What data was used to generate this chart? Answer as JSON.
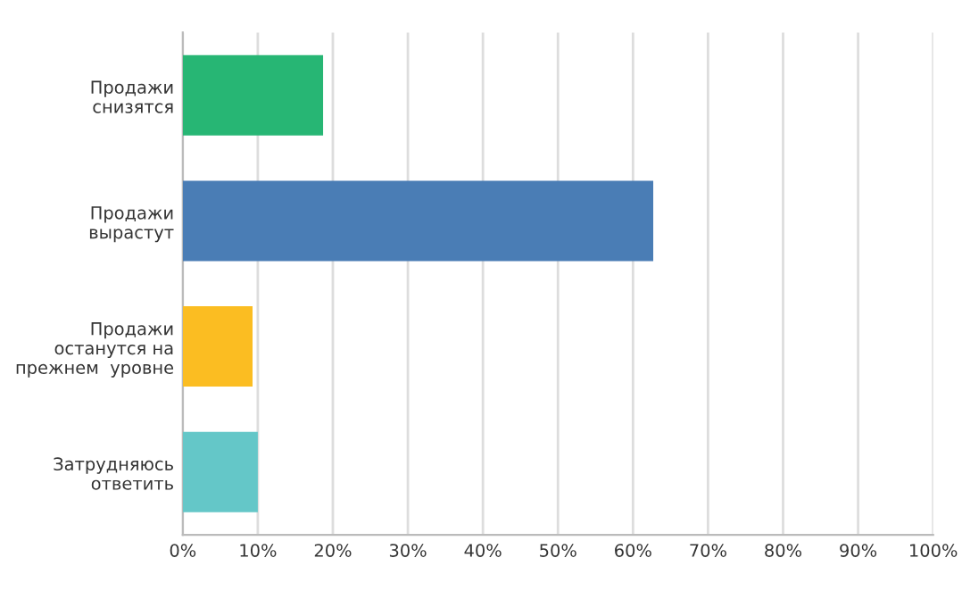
{
  "chart_data": {
    "type": "bar",
    "orientation": "horizontal",
    "categories": [
      "Продажи\nснизятся",
      "Продажи\nвырастут",
      "Продажи\nостанутся на\nпрежнем  уровне",
      "Затрудняюсь\nответить"
    ],
    "values": [
      18.7,
      62.7,
      9.3,
      10.0
    ],
    "colors": [
      "#27b674",
      "#4a7db5",
      "#fbbd22",
      "#64c7c8"
    ],
    "xlim": [
      0,
      100
    ],
    "xticks": [
      {
        "value": 0,
        "label": "0%"
      },
      {
        "value": 10,
        "label": "10%"
      },
      {
        "value": 20,
        "label": "20%"
      },
      {
        "value": 30,
        "label": "30%"
      },
      {
        "value": 40,
        "label": "40%"
      },
      {
        "value": 50,
        "label": "50%"
      },
      {
        "value": 60,
        "label": "60%"
      },
      {
        "value": 70,
        "label": "70%"
      },
      {
        "value": 80,
        "label": "80%"
      },
      {
        "value": 90,
        "label": "90%"
      },
      {
        "value": 100,
        "label": "100%"
      }
    ],
    "grid": "x"
  }
}
